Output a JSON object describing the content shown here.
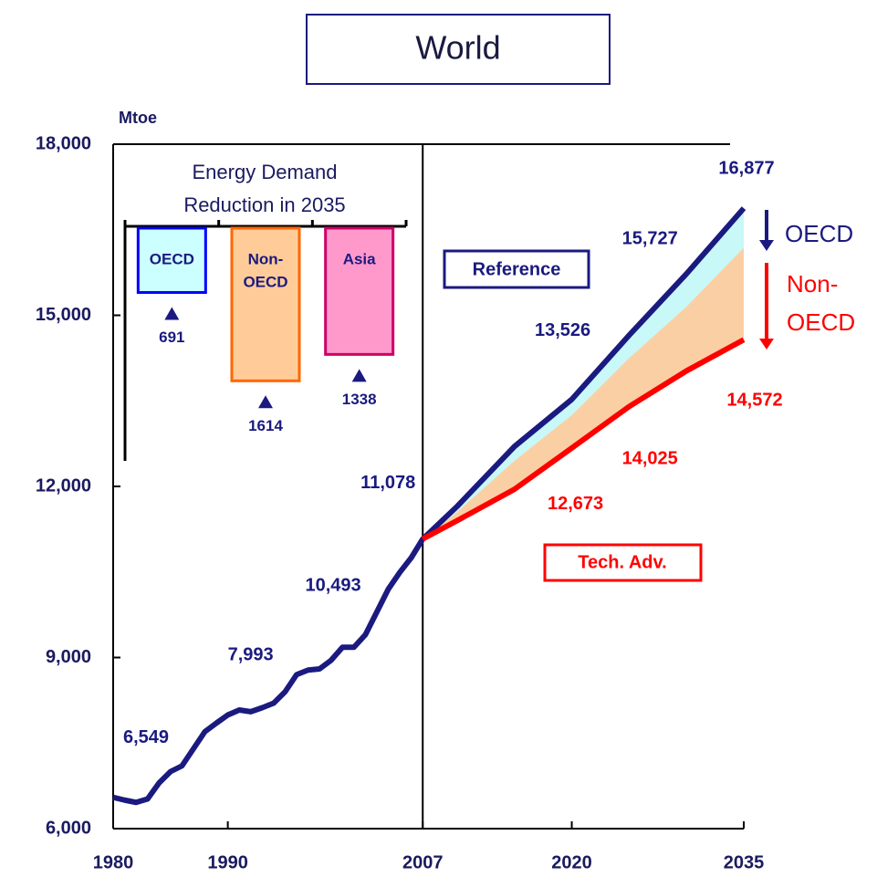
{
  "chart_data": {
    "type": "line",
    "title": "World",
    "y_label": "Mtoe",
    "xlim": [
      1980,
      2035
    ],
    "ylim": [
      6000,
      18000
    ],
    "xticks": [
      1980,
      1990,
      2007,
      2020,
      2035
    ],
    "yticks": [
      {
        "value": 18000,
        "label": "18,000"
      },
      {
        "value": 15000,
        "label": "15,000"
      },
      {
        "value": 12000,
        "label": "12,000"
      },
      {
        "value": 9000,
        "label": "9,000"
      },
      {
        "value": 6000,
        "label": "6,000"
      }
    ],
    "divider_x": 2007,
    "series": [
      {
        "name": "Reference",
        "color": "#1a1a80",
        "x": [
          1980,
          1981,
          1982,
          1983,
          1984,
          1985,
          1986,
          1987,
          1988,
          1989,
          1990,
          1991,
          1992,
          1993,
          1994,
          1995,
          1996,
          1997,
          1998,
          1999,
          2000,
          2001,
          2002,
          2003,
          2004,
          2005,
          2006,
          2007,
          2010,
          2015,
          2020,
          2025,
          2030,
          2035
        ],
        "values": [
          6549,
          6500,
          6460,
          6520,
          6800,
          7000,
          7100,
          7400,
          7700,
          7850,
          7993,
          8080,
          8050,
          8120,
          8200,
          8400,
          8700,
          8780,
          8800,
          8950,
          9180,
          9180,
          9400,
          9800,
          10200,
          10493,
          10750,
          11078,
          11650,
          12700,
          13526,
          14650,
          15727,
          16877
        ],
        "value_labels": [
          "6,549",
          null,
          null,
          null,
          null,
          null,
          null,
          null,
          null,
          null,
          "7,993",
          null,
          null,
          null,
          null,
          null,
          null,
          null,
          null,
          null,
          null,
          null,
          null,
          null,
          null,
          "10,493",
          null,
          "11,078",
          null,
          null,
          "13,526",
          null,
          "15,727",
          "16,877"
        ]
      },
      {
        "name": "Tech. Adv.",
        "color": "#ff0000",
        "x": [
          2007,
          2010,
          2015,
          2020,
          2025,
          2030,
          2035
        ],
        "values": [
          11078,
          11400,
          11950,
          12673,
          13400,
          14025,
          14572
        ],
        "value_labels": [
          null,
          null,
          null,
          "12,673",
          null,
          "14,025",
          "14,572"
        ]
      }
    ],
    "split": {
      "x": [
        2007,
        2010,
        2015,
        2020,
        2025,
        2030,
        2035
      ],
      "values": [
        11078,
        11550,
        12450,
        13250,
        14250,
        15150,
        16186
      ]
    },
    "areas": [
      {
        "color": "#c8f8f8"
      },
      {
        "color": "#fbcfa4"
      }
    ],
    "arrows": [
      {
        "lines": [
          "OECD"
        ],
        "color": "#1a1a80"
      },
      {
        "lines": [
          "Non-",
          "OECD"
        ],
        "color": "#ff0000"
      }
    ],
    "inset": {
      "type": "bar",
      "title": [
        "Energy Demand",
        "Reduction in 2035"
      ],
      "categories": [
        [
          "OECD"
        ],
        [
          "Non-",
          "OECD"
        ],
        [
          "Asia"
        ]
      ],
      "values": [
        691,
        1614,
        1338
      ],
      "colors": [
        "#ccffff",
        "#ffcc99",
        "#ff99cc"
      ],
      "borders": [
        "#0000ff",
        "#ff6600",
        "#cc0066"
      ],
      "ylim": [
        0,
        2450
      ]
    }
  }
}
